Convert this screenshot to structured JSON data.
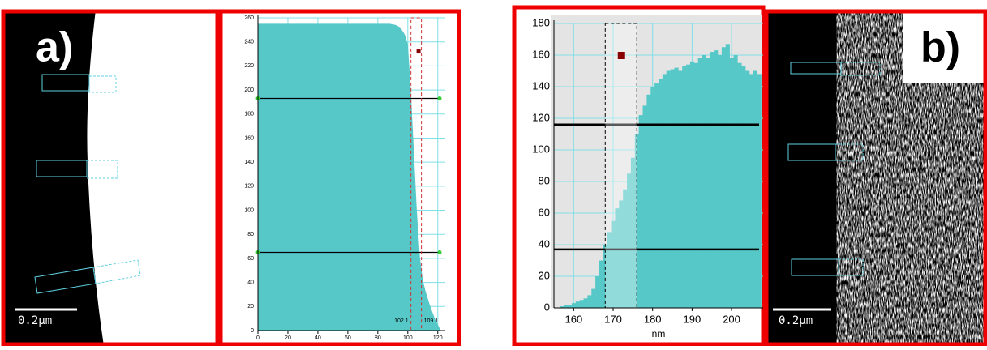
{
  "panels": [
    {
      "label": "a)",
      "scale_label": "0.2μm"
    },
    {
      "label": "b)",
      "scale_label": "0.2μm"
    }
  ],
  "chart_data": [
    {
      "type": "area",
      "color": "#57c8c8",
      "x": [
        0,
        10,
        20,
        30,
        40,
        50,
        60,
        70,
        80,
        88,
        92,
        95,
        98,
        100,
        102,
        104,
        106,
        108,
        110,
        112,
        115,
        118,
        120,
        122
      ],
      "values": [
        255,
        255,
        255,
        255,
        255,
        255,
        255,
        255,
        255,
        255,
        254,
        252,
        246,
        238,
        200,
        150,
        100,
        62,
        42,
        32,
        20,
        10,
        5,
        0
      ],
      "xlim": [
        0,
        125
      ],
      "xticks": [
        0,
        20,
        40,
        60,
        80,
        100,
        120
      ],
      "ylim": [
        0,
        260
      ],
      "yticks": [
        0,
        20,
        40,
        60,
        80,
        100,
        120,
        140,
        160,
        180,
        200,
        220,
        240,
        260
      ],
      "hlines": [
        193,
        65
      ],
      "selection": [
        102.1,
        109.1
      ],
      "marker": {
        "x": 108,
        "y": 231
      },
      "grid": true
    },
    {
      "type": "histogram",
      "color": "#57c8c8",
      "xlabel": "nm",
      "x": [
        157,
        158,
        159,
        160,
        161,
        162,
        163,
        164,
        165,
        166,
        167,
        168,
        169,
        170,
        171,
        172,
        173,
        174,
        175,
        176,
        177,
        178,
        179,
        180,
        181,
        182,
        183,
        184,
        185,
        186,
        187,
        188,
        189,
        190,
        191,
        192,
        193,
        194,
        195,
        196,
        197,
        198,
        199,
        200,
        201,
        202,
        203,
        204,
        205,
        206,
        207
      ],
      "values": [
        1,
        2,
        2,
        3,
        4,
        5,
        6,
        8,
        12,
        20,
        30,
        40,
        48,
        55,
        63,
        68,
        75,
        85,
        95,
        110,
        122,
        128,
        135,
        140,
        142,
        145,
        148,
        150,
        151,
        152,
        150,
        153,
        154,
        156,
        155,
        158,
        160,
        158,
        162,
        163,
        160,
        165,
        167,
        158,
        160,
        155,
        153,
        150,
        148,
        150,
        148
      ],
      "xlim": [
        155,
        208
      ],
      "xticks": [
        160,
        170,
        180,
        190,
        200
      ],
      "ylim": [
        0,
        180
      ],
      "yticks": [
        0,
        20,
        40,
        60,
        80,
        100,
        120,
        140,
        160,
        180
      ],
      "hlines": [
        116,
        37
      ],
      "selection": [
        168,
        176
      ],
      "marker": {
        "x": 172,
        "y": 160
      },
      "grid": true
    }
  ]
}
